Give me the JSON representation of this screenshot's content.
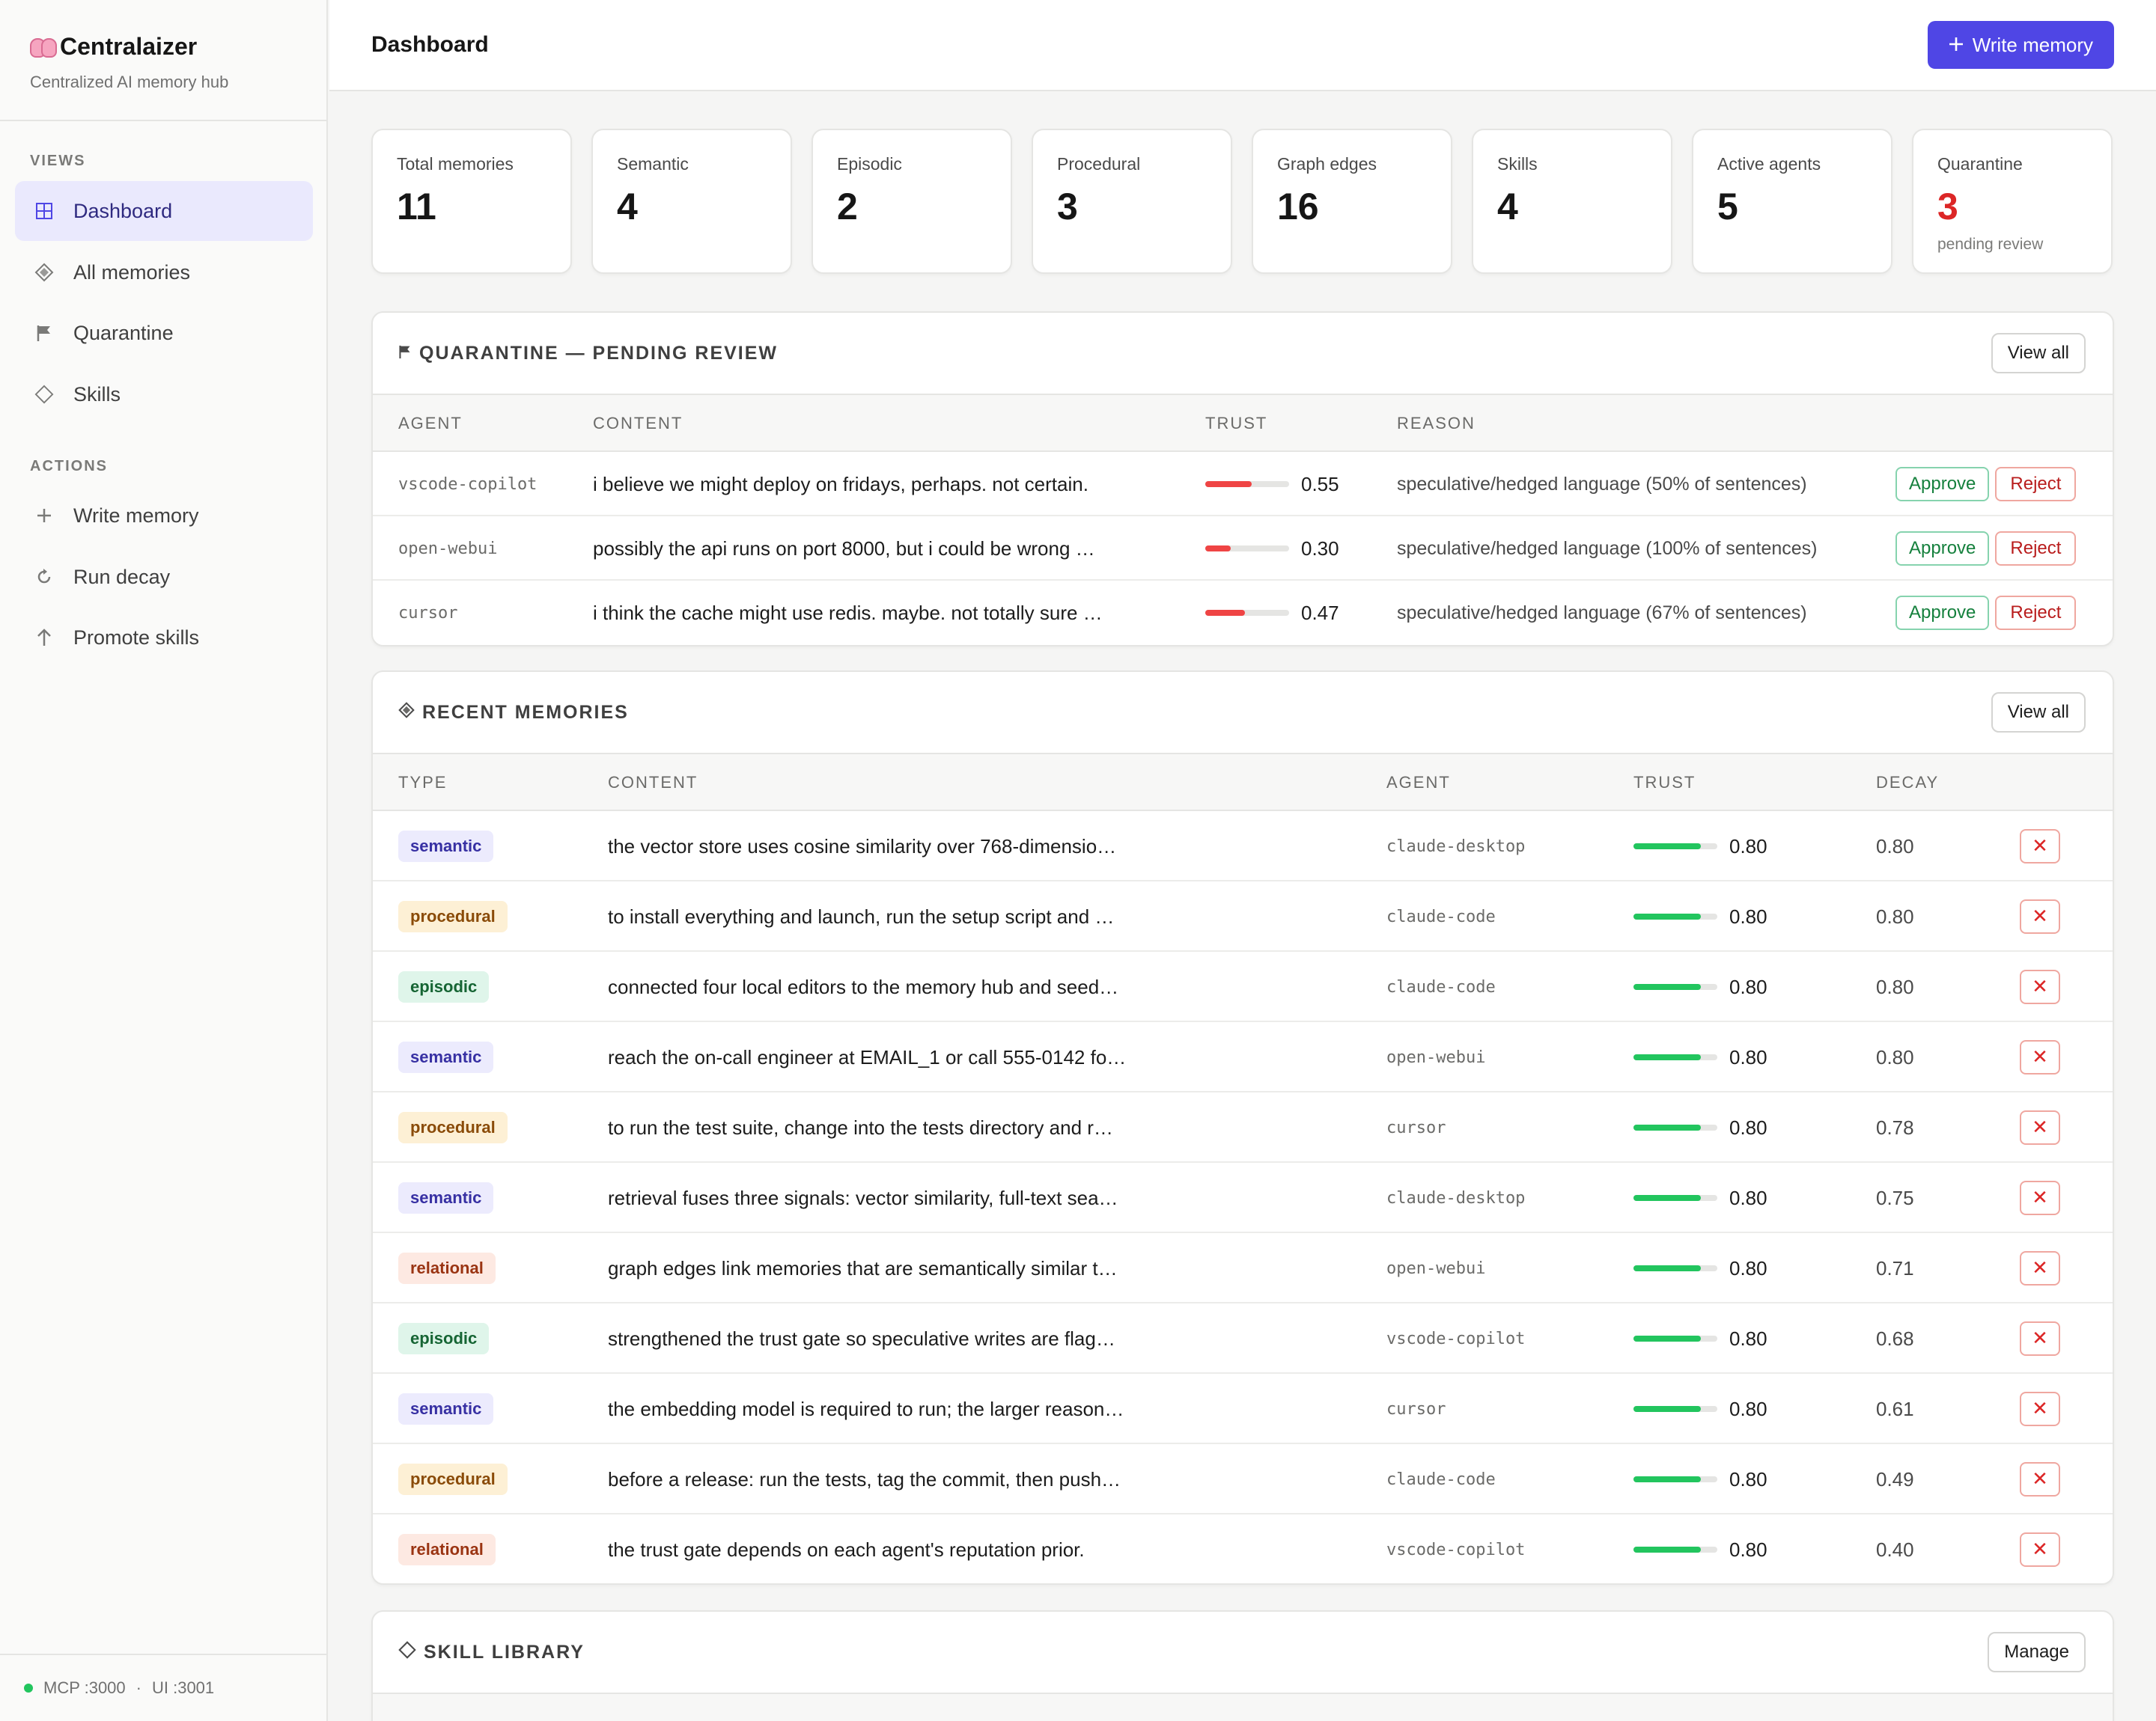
{
  "app": {
    "name": "Centralaizer",
    "subtitle": "Centralized AI memory hub"
  },
  "sidebar": {
    "views_heading": "VIEWS",
    "views": [
      {
        "label": "Dashboard",
        "icon": "grid-icon",
        "active": true
      },
      {
        "label": "All memories",
        "icon": "diamond-icon"
      },
      {
        "label": "Quarantine",
        "icon": "flag-icon"
      },
      {
        "label": "Skills",
        "icon": "diamond-outline-icon"
      }
    ],
    "actions_heading": "ACTIONS",
    "actions": [
      {
        "label": "Write memory",
        "icon": "plus-icon"
      },
      {
        "label": "Run decay",
        "icon": "refresh-icon"
      },
      {
        "label": "Promote skills",
        "icon": "arrow-up-icon"
      }
    ],
    "footer": {
      "mcp": "MCP :3000",
      "sep": "·",
      "ui": "UI :3001",
      "status_color": "#22c55e"
    }
  },
  "header": {
    "title": "Dashboard",
    "write_button": "Write memory"
  },
  "stats": [
    {
      "label": "Total memories",
      "value": "11"
    },
    {
      "label": "Semantic",
      "value": "4"
    },
    {
      "label": "Episodic",
      "value": "2"
    },
    {
      "label": "Procedural",
      "value": "3"
    },
    {
      "label": "Graph edges",
      "value": "16"
    },
    {
      "label": "Skills",
      "value": "4"
    },
    {
      "label": "Active agents",
      "value": "5"
    },
    {
      "label": "Quarantine",
      "value": "3",
      "note": "pending review"
    }
  ],
  "quarantine": {
    "title": "QUARANTINE — PENDING REVIEW",
    "view_all": "View all",
    "columns": [
      "AGENT",
      "CONTENT",
      "TRUST",
      "REASON"
    ],
    "approve_label": "Approve",
    "reject_label": "Reject",
    "rows": [
      {
        "agent": "vscode-copilot",
        "content": "i believe we might deploy on fridays, perhaps. not certain.",
        "trust": 0.55,
        "trust_text": "0.55",
        "reason": "speculative/hedged language (50% of sentences)"
      },
      {
        "agent": "open-webui",
        "content": "possibly the api runs on port 8000, but i could be wrong …",
        "trust": 0.3,
        "trust_text": "0.30",
        "reason": "speculative/hedged language (100% of sentences)"
      },
      {
        "agent": "cursor",
        "content": "i think the cache might use redis. maybe. not totally sure …",
        "trust": 0.47,
        "trust_text": "0.47",
        "reason": "speculative/hedged language (67% of sentences)"
      }
    ]
  },
  "recent": {
    "title": "RECENT MEMORIES",
    "view_all": "View all",
    "columns": [
      "TYPE",
      "CONTENT",
      "AGENT",
      "TRUST",
      "DECAY"
    ],
    "rows": [
      {
        "type": "semantic",
        "content": "the vector store uses cosine similarity over 768-dimensio…",
        "agent": "claude-desktop",
        "trust": 0.8,
        "trust_text": "0.80",
        "decay": "0.80"
      },
      {
        "type": "procedural",
        "content": "to install everything and launch, run the setup script and …",
        "agent": "claude-code",
        "trust": 0.8,
        "trust_text": "0.80",
        "decay": "0.80"
      },
      {
        "type": "episodic",
        "content": "connected four local editors to the memory hub and seed…",
        "agent": "claude-code",
        "trust": 0.8,
        "trust_text": "0.80",
        "decay": "0.80"
      },
      {
        "type": "semantic",
        "content": "reach the on-call engineer at EMAIL_1 or call 555-0142 fo…",
        "agent": "open-webui",
        "trust": 0.8,
        "trust_text": "0.80",
        "decay": "0.80"
      },
      {
        "type": "procedural",
        "content": "to run the test suite, change into the tests directory and r…",
        "agent": "cursor",
        "trust": 0.8,
        "trust_text": "0.80",
        "decay": "0.78"
      },
      {
        "type": "semantic",
        "content": "retrieval fuses three signals: vector similarity, full-text sea…",
        "agent": "claude-desktop",
        "trust": 0.8,
        "trust_text": "0.80",
        "decay": "0.75"
      },
      {
        "type": "relational",
        "content": "graph edges link memories that are semantically similar t…",
        "agent": "open-webui",
        "trust": 0.8,
        "trust_text": "0.80",
        "decay": "0.71"
      },
      {
        "type": "episodic",
        "content": "strengthened the trust gate so speculative writes are flag…",
        "agent": "vscode-copilot",
        "trust": 0.8,
        "trust_text": "0.80",
        "decay": "0.68"
      },
      {
        "type": "semantic",
        "content": "the embedding model is required to run; the larger reason…",
        "agent": "cursor",
        "trust": 0.8,
        "trust_text": "0.80",
        "decay": "0.61"
      },
      {
        "type": "procedural",
        "content": "before a release: run the tests, tag the commit, then push…",
        "agent": "claude-code",
        "trust": 0.8,
        "trust_text": "0.80",
        "decay": "0.49"
      },
      {
        "type": "relational",
        "content": "the trust gate depends on each agent's reputation prior.",
        "agent": "vscode-copilot",
        "trust": 0.8,
        "trust_text": "0.80",
        "decay": "0.40"
      }
    ]
  },
  "skills": {
    "title": "SKILL LIBRARY",
    "manage": "Manage"
  }
}
